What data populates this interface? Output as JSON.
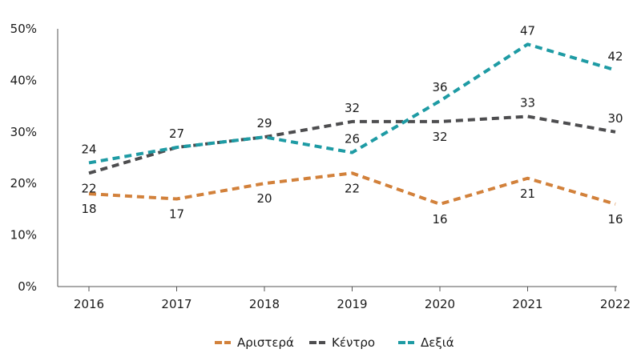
{
  "chart_data": {
    "type": "line",
    "title": "",
    "xlabel": "",
    "ylabel": "",
    "x": [
      "2016",
      "2017",
      "2018",
      "2019",
      "2020",
      "2021",
      "2022"
    ],
    "ylim": [
      0,
      50
    ],
    "yticks": [
      0,
      10,
      20,
      30,
      40,
      50
    ],
    "ytick_labels": [
      "0%",
      "10%",
      "20%",
      "30%",
      "40%",
      "50%"
    ],
    "grid": false,
    "legend_position": "bottom-center",
    "line_style": "dashed",
    "series": [
      {
        "name": "Αριστερά",
        "color": "#d2813b",
        "values": [
          18,
          17,
          20,
          22,
          16,
          21,
          16
        ],
        "labels": [
          "18",
          "17",
          "20",
          "22",
          "16",
          "21",
          "16"
        ],
        "label_position": [
          "below",
          "below",
          "below",
          "below",
          "below",
          "below",
          "below"
        ]
      },
      {
        "name": "Κέντρο",
        "color": "#4d4d4f",
        "values": [
          22,
          27,
          29,
          32,
          32,
          33,
          30
        ],
        "labels": [
          "22",
          "27",
          "29",
          "32",
          "32",
          "33",
          "30"
        ],
        "label_position": [
          "below",
          "above",
          "above",
          "above",
          "below",
          "above",
          "above"
        ]
      },
      {
        "name": "Δεξιά",
        "color": "#1e9ba4",
        "values": [
          24,
          27,
          29,
          26,
          36,
          47,
          42
        ],
        "labels": [
          "24",
          "",
          "",
          "26",
          "36",
          "47",
          "42"
        ],
        "label_position": [
          "above",
          "none",
          "none",
          "above",
          "above",
          "above",
          "above"
        ]
      }
    ]
  }
}
